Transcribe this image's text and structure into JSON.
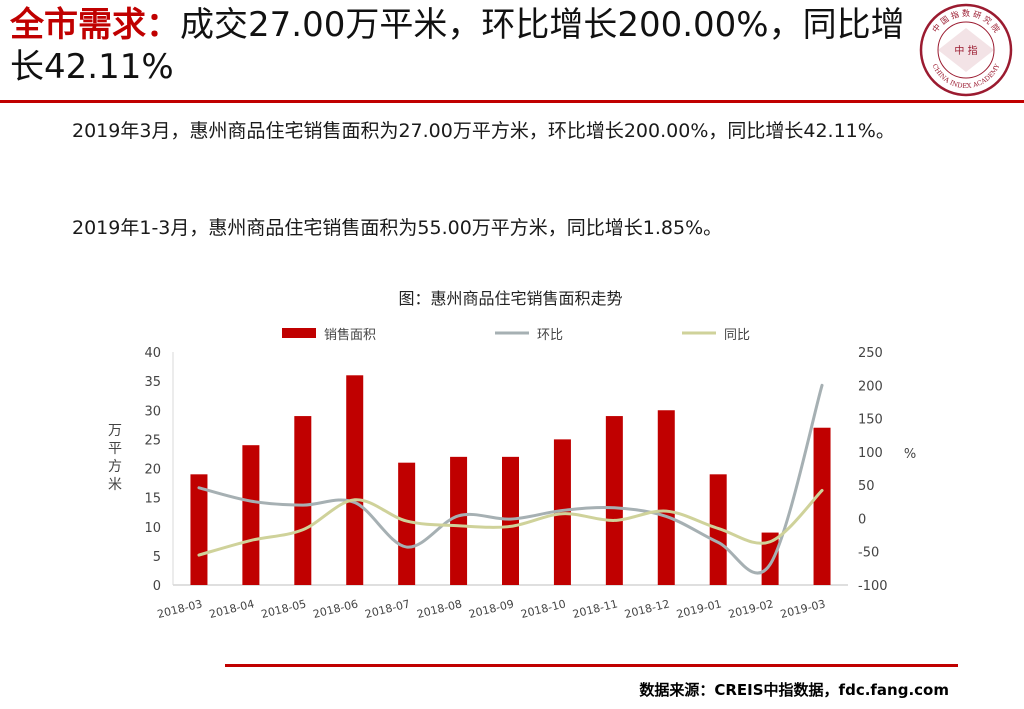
{
  "header": {
    "title_highlight": "全市需求：",
    "title_rest": "成交27.00万平米，环比增长200.00%，同比增长42.11%"
  },
  "body": {
    "para1": "2019年3月，惠州商品住宅销售面积为27.00万平方米，环比增长200.00%，同比增长42.11%。",
    "para2": "2019年1-3月，惠州商品住宅销售面积为55.00万平方米，同比增长1.85%。"
  },
  "logo": {
    "top_text": "中 国 指 数 研 究 院",
    "center_text": "中 指",
    "bottom_text": "CHINA INDEX ACADEMY"
  },
  "footer": {
    "source": "数据来源：CREIS中指数据，fdc.fang.com"
  },
  "colors": {
    "accent": "#c00000",
    "bar": "#c00000",
    "hb_line": "#a6b0b3",
    "tb_line": "#cfd29a"
  },
  "chart_data": {
    "type": "bar",
    "title": "图：惠州商品住宅销售面积走势",
    "categories": [
      "2018-03",
      "2018-04",
      "2018-05",
      "2018-06",
      "2018-07",
      "2018-08",
      "2018-09",
      "2018-10",
      "2018-11",
      "2018-12",
      "2019-01",
      "2019-02",
      "2019-03"
    ],
    "series": [
      {
        "name": "销售面积",
        "type": "bar",
        "axis": "left",
        "values": [
          19,
          24,
          29,
          36,
          21,
          22,
          22,
          25,
          29,
          30,
          19,
          9,
          27
        ]
      },
      {
        "name": "环比",
        "type": "line",
        "axis": "right",
        "values": [
          46,
          26,
          20,
          24,
          -43,
          4,
          -1,
          12,
          16,
          3,
          -36,
          -69,
          200
        ]
      },
      {
        "name": "同比",
        "type": "line",
        "axis": "right",
        "values": [
          -55,
          -33,
          -17,
          28,
          -4,
          -11,
          -12,
          7,
          -3,
          11,
          -15,
          -35,
          42
        ]
      }
    ],
    "ylabel": "万平方米",
    "ylim": [
      0,
      40
    ],
    "yticks": [
      0,
      5,
      10,
      15,
      20,
      25,
      30,
      35,
      40
    ],
    "y2label": "%",
    "y2lim": [
      -100,
      250
    ],
    "y2ticks": [
      -100,
      -50,
      0,
      50,
      100,
      150,
      200,
      250
    ],
    "grid": false,
    "legend": "top"
  }
}
